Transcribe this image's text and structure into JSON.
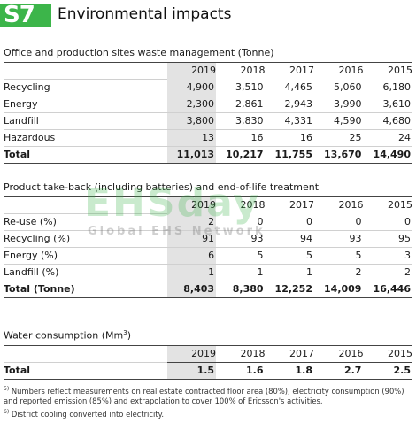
{
  "header": {
    "badge": "S7",
    "title": "Environmental impacts"
  },
  "waste": {
    "title": "Office and production sites waste management (Tonne)",
    "years": [
      "2019",
      "2018",
      "2017",
      "2016",
      "2015"
    ],
    "rows": [
      {
        "label": "Recycling",
        "values": [
          "4,900",
          "3,510",
          "4,465",
          "5,060",
          "6,180"
        ]
      },
      {
        "label": "Energy",
        "values": [
          "2,300",
          "2,861",
          "2,943",
          "3,990",
          "3,610"
        ]
      },
      {
        "label": "Landfill",
        "values": [
          "3,800",
          "3,830",
          "4,331",
          "4,590",
          "4,680"
        ]
      },
      {
        "label": "Hazardous",
        "values": [
          "13",
          "16",
          "16",
          "25",
          "24"
        ]
      }
    ],
    "total": {
      "label": "Total",
      "values": [
        "11,013",
        "10,217",
        "11,755",
        "13,670",
        "14,490"
      ]
    }
  },
  "takeback": {
    "title": "Product take-back (including batteries) and end-of-life treatment",
    "years": [
      "2019",
      "2018",
      "2017",
      "2016",
      "2015"
    ],
    "rows": [
      {
        "label": "Re-use (%)",
        "values": [
          "2",
          "0",
          "0",
          "0",
          "0"
        ]
      },
      {
        "label": "Recycling (%)",
        "values": [
          "91",
          "93",
          "94",
          "93",
          "95"
        ]
      },
      {
        "label": "Energy (%)",
        "values": [
          "6",
          "5",
          "5",
          "5",
          "3"
        ]
      },
      {
        "label": "Landfill (%)",
        "values": [
          "1",
          "1",
          "1",
          "2",
          "2"
        ]
      }
    ],
    "total": {
      "label": "Total (Tonne)",
      "values": [
        "8,403",
        "8,380",
        "12,252",
        "14,009",
        "16,446"
      ]
    }
  },
  "water": {
    "title": "Water consumption (Mm",
    "title_sup": "3",
    "title_end": ")",
    "years": [
      "2019",
      "2018",
      "2017",
      "2016",
      "2015"
    ],
    "total": {
      "label": "Total",
      "values": [
        "1.5",
        "1.6",
        "1.8",
        "2.7",
        "2.5"
      ]
    }
  },
  "notes": [
    {
      "mark": "5)",
      "text": "Numbers reflect measurements on real estate contracted floor area (80%), electricity consumption (90%) and reported emission (85%) and extrapolation to cover 100% of Ericsson's activities."
    },
    {
      "mark": "6)",
      "text": "District cooling converted into electricity."
    }
  ],
  "watermark": {
    "big": "EHSday",
    "small": "Global EHS Network"
  }
}
